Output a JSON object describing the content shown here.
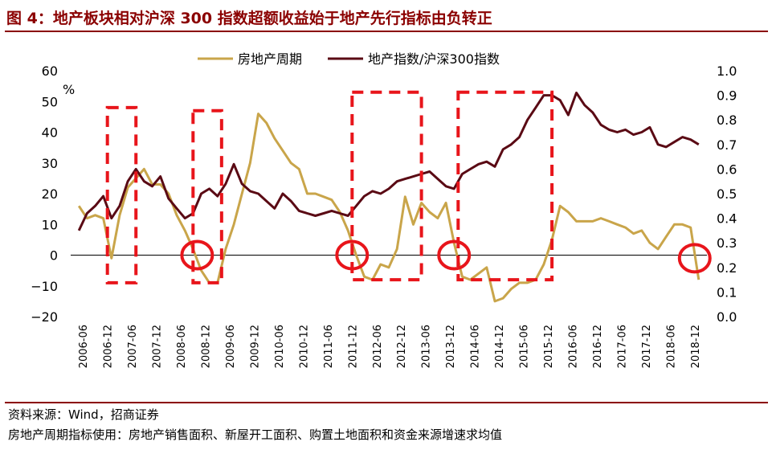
{
  "title": "图 4：地产板块相对沪深 300 指数超额收益始于地产先行指标由负转正",
  "footer": {
    "source": "资料来源：Wind，招商证券",
    "note": "房地产周期指标使用：房地产销售面积、新屋开工面积、购置土地面积和资金来源增速求均值"
  },
  "chart_data": {
    "type": "line",
    "y_left": {
      "label": "%",
      "min": -20,
      "max": 60,
      "ticks": [
        60,
        50,
        40,
        30,
        20,
        10,
        0,
        -10,
        -20
      ],
      "tick_labels": [
        "60",
        "50",
        "40",
        "30",
        "20",
        "10",
        "0",
        "−10",
        "−20"
      ]
    },
    "y_right": {
      "min": 0.0,
      "max": 1.0,
      "ticks": [
        1.0,
        0.9,
        0.8,
        0.7,
        0.6,
        0.5,
        0.4,
        0.3,
        0.2,
        0.1,
        0.0
      ],
      "tick_labels": [
        "1.0",
        "0.9",
        "0.8",
        "0.7",
        "0.6",
        "0.5",
        "0.4",
        "0.3",
        "0.2",
        "0.1",
        "0.0"
      ]
    },
    "x_ticks": [
      "2006-06",
      "2006-12",
      "2007-06",
      "2007-12",
      "2008-06",
      "2008-12",
      "2009-06",
      "2009-12",
      "2010-06",
      "2010-12",
      "2011-06",
      "2011-12",
      "2012-06",
      "2012-12",
      "2013-06",
      "2013-12",
      "2014-06",
      "2014-12",
      "2015-06",
      "2015-12",
      "2016-06",
      "2016-12",
      "2017-06",
      "2017-12",
      "2018-06",
      "2018-12"
    ],
    "legend_position": "top",
    "series": [
      {
        "name": "房地产周期",
        "axis": "left",
        "color": "#C9A54A",
        "points": [
          [
            "2006-05",
            16
          ],
          [
            "2006-07",
            12
          ],
          [
            "2006-09",
            13
          ],
          [
            "2006-11",
            12
          ],
          [
            "2007-01",
            -1
          ],
          [
            "2007-03",
            13
          ],
          [
            "2007-05",
            22
          ],
          [
            "2007-07",
            25
          ],
          [
            "2007-09",
            28
          ],
          [
            "2007-11",
            23
          ],
          [
            "2008-01",
            23
          ],
          [
            "2008-03",
            20
          ],
          [
            "2008-05",
            13
          ],
          [
            "2008-07",
            8
          ],
          [
            "2008-09",
            2
          ],
          [
            "2008-11",
            -5
          ],
          [
            "2009-01",
            -9
          ],
          [
            "2009-03",
            -9
          ],
          [
            "2009-05",
            2
          ],
          [
            "2009-07",
            10
          ],
          [
            "2009-09",
            20
          ],
          [
            "2009-11",
            30
          ],
          [
            "2010-01",
            46
          ],
          [
            "2010-03",
            43
          ],
          [
            "2010-05",
            38
          ],
          [
            "2010-07",
            34
          ],
          [
            "2010-09",
            30
          ],
          [
            "2010-11",
            28
          ],
          [
            "2011-01",
            20
          ],
          [
            "2011-03",
            20
          ],
          [
            "2011-05",
            19
          ],
          [
            "2011-07",
            18
          ],
          [
            "2011-09",
            14
          ],
          [
            "2011-11",
            8
          ],
          [
            "2012-01",
            0
          ],
          [
            "2012-03",
            -7
          ],
          [
            "2012-05",
            -8
          ],
          [
            "2012-07",
            -3
          ],
          [
            "2012-09",
            -4
          ],
          [
            "2012-11",
            2
          ],
          [
            "2013-01",
            19
          ],
          [
            "2013-03",
            10
          ],
          [
            "2013-05",
            17
          ],
          [
            "2013-07",
            14
          ],
          [
            "2013-09",
            12
          ],
          [
            "2013-11",
            17
          ],
          [
            "2014-01",
            4
          ],
          [
            "2014-03",
            -7
          ],
          [
            "2014-05",
            -8
          ],
          [
            "2014-07",
            -6
          ],
          [
            "2014-09",
            -4
          ],
          [
            "2014-11",
            -15
          ],
          [
            "2015-01",
            -14
          ],
          [
            "2015-03",
            -11
          ],
          [
            "2015-05",
            -9
          ],
          [
            "2015-07",
            -9
          ],
          [
            "2015-09",
            -8
          ],
          [
            "2015-11",
            -3
          ],
          [
            "2016-01",
            5
          ],
          [
            "2016-03",
            16
          ],
          [
            "2016-05",
            14
          ],
          [
            "2016-07",
            11
          ],
          [
            "2016-09",
            11
          ],
          [
            "2016-11",
            11
          ],
          [
            "2017-01",
            12
          ],
          [
            "2017-03",
            11
          ],
          [
            "2017-05",
            10
          ],
          [
            "2017-07",
            9
          ],
          [
            "2017-09",
            7
          ],
          [
            "2017-11",
            8
          ],
          [
            "2018-01",
            4
          ],
          [
            "2018-03",
            2
          ],
          [
            "2018-05",
            6
          ],
          [
            "2018-07",
            10
          ],
          [
            "2018-09",
            10
          ],
          [
            "2018-11",
            9
          ],
          [
            "2019-01",
            -8
          ]
        ]
      },
      {
        "name": "地产指数/沪深300指数",
        "axis": "right",
        "color": "#5A0A14",
        "points": [
          [
            "2006-05",
            0.35
          ],
          [
            "2006-07",
            0.42
          ],
          [
            "2006-09",
            0.45
          ],
          [
            "2006-11",
            0.49
          ],
          [
            "2007-01",
            0.4
          ],
          [
            "2007-03",
            0.45
          ],
          [
            "2007-05",
            0.55
          ],
          [
            "2007-07",
            0.6
          ],
          [
            "2007-09",
            0.55
          ],
          [
            "2007-11",
            0.53
          ],
          [
            "2008-01",
            0.57
          ],
          [
            "2008-03",
            0.48
          ],
          [
            "2008-05",
            0.44
          ],
          [
            "2008-07",
            0.4
          ],
          [
            "2008-09",
            0.42
          ],
          [
            "2008-11",
            0.5
          ],
          [
            "2009-01",
            0.52
          ],
          [
            "2009-03",
            0.49
          ],
          [
            "2009-05",
            0.54
          ],
          [
            "2009-07",
            0.62
          ],
          [
            "2009-09",
            0.54
          ],
          [
            "2009-11",
            0.51
          ],
          [
            "2010-01",
            0.5
          ],
          [
            "2010-03",
            0.47
          ],
          [
            "2010-05",
            0.44
          ],
          [
            "2010-07",
            0.5
          ],
          [
            "2010-09",
            0.47
          ],
          [
            "2010-11",
            0.43
          ],
          [
            "2011-01",
            0.42
          ],
          [
            "2011-03",
            0.41
          ],
          [
            "2011-05",
            0.42
          ],
          [
            "2011-07",
            0.43
          ],
          [
            "2011-09",
            0.42
          ],
          [
            "2011-11",
            0.41
          ],
          [
            "2012-01",
            0.45
          ],
          [
            "2012-03",
            0.49
          ],
          [
            "2012-05",
            0.51
          ],
          [
            "2012-07",
            0.5
          ],
          [
            "2012-09",
            0.52
          ],
          [
            "2012-11",
            0.55
          ],
          [
            "2013-01",
            0.56
          ],
          [
            "2013-03",
            0.57
          ],
          [
            "2013-05",
            0.58
          ],
          [
            "2013-07",
            0.59
          ],
          [
            "2013-09",
            0.56
          ],
          [
            "2013-11",
            0.53
          ],
          [
            "2014-01",
            0.52
          ],
          [
            "2014-03",
            0.58
          ],
          [
            "2014-05",
            0.6
          ],
          [
            "2014-07",
            0.62
          ],
          [
            "2014-09",
            0.63
          ],
          [
            "2014-11",
            0.61
          ],
          [
            "2015-01",
            0.68
          ],
          [
            "2015-03",
            0.7
          ],
          [
            "2015-05",
            0.73
          ],
          [
            "2015-07",
            0.8
          ],
          [
            "2015-09",
            0.85
          ],
          [
            "2015-11",
            0.9
          ],
          [
            "2016-01",
            0.9
          ],
          [
            "2016-03",
            0.88
          ],
          [
            "2016-05",
            0.82
          ],
          [
            "2016-07",
            0.91
          ],
          [
            "2016-09",
            0.86
          ],
          [
            "2016-11",
            0.83
          ],
          [
            "2017-01",
            0.78
          ],
          [
            "2017-03",
            0.76
          ],
          [
            "2017-05",
            0.75
          ],
          [
            "2017-07",
            0.76
          ],
          [
            "2017-09",
            0.74
          ],
          [
            "2017-11",
            0.75
          ],
          [
            "2018-01",
            0.77
          ],
          [
            "2018-03",
            0.7
          ],
          [
            "2018-05",
            0.69
          ],
          [
            "2018-07",
            0.71
          ],
          [
            "2018-09",
            0.73
          ],
          [
            "2018-11",
            0.72
          ],
          [
            "2019-01",
            0.7
          ]
        ]
      }
    ],
    "annotations": {
      "dashed_boxes": [
        {
          "x0": "2006-12",
          "x1": "2007-07",
          "y_top": 48,
          "y_bottom": -9
        },
        {
          "x0": "2008-09",
          "x1": "2009-04",
          "y_top": 47,
          "y_bottom": -9
        },
        {
          "x0": "2011-12",
          "x1": "2013-05",
          "y_top": 53,
          "y_bottom": -8
        },
        {
          "x0": "2014-02",
          "x1": "2016-01",
          "y_top": 53,
          "y_bottom": -8
        }
      ],
      "circles": [
        {
          "x": "2008-10",
          "y": 0
        },
        {
          "x": "2011-12",
          "y": 0
        },
        {
          "x": "2014-01",
          "y": 0
        },
        {
          "x": "2018-12",
          "y": -1
        }
      ],
      "color": "#E8151B"
    }
  }
}
